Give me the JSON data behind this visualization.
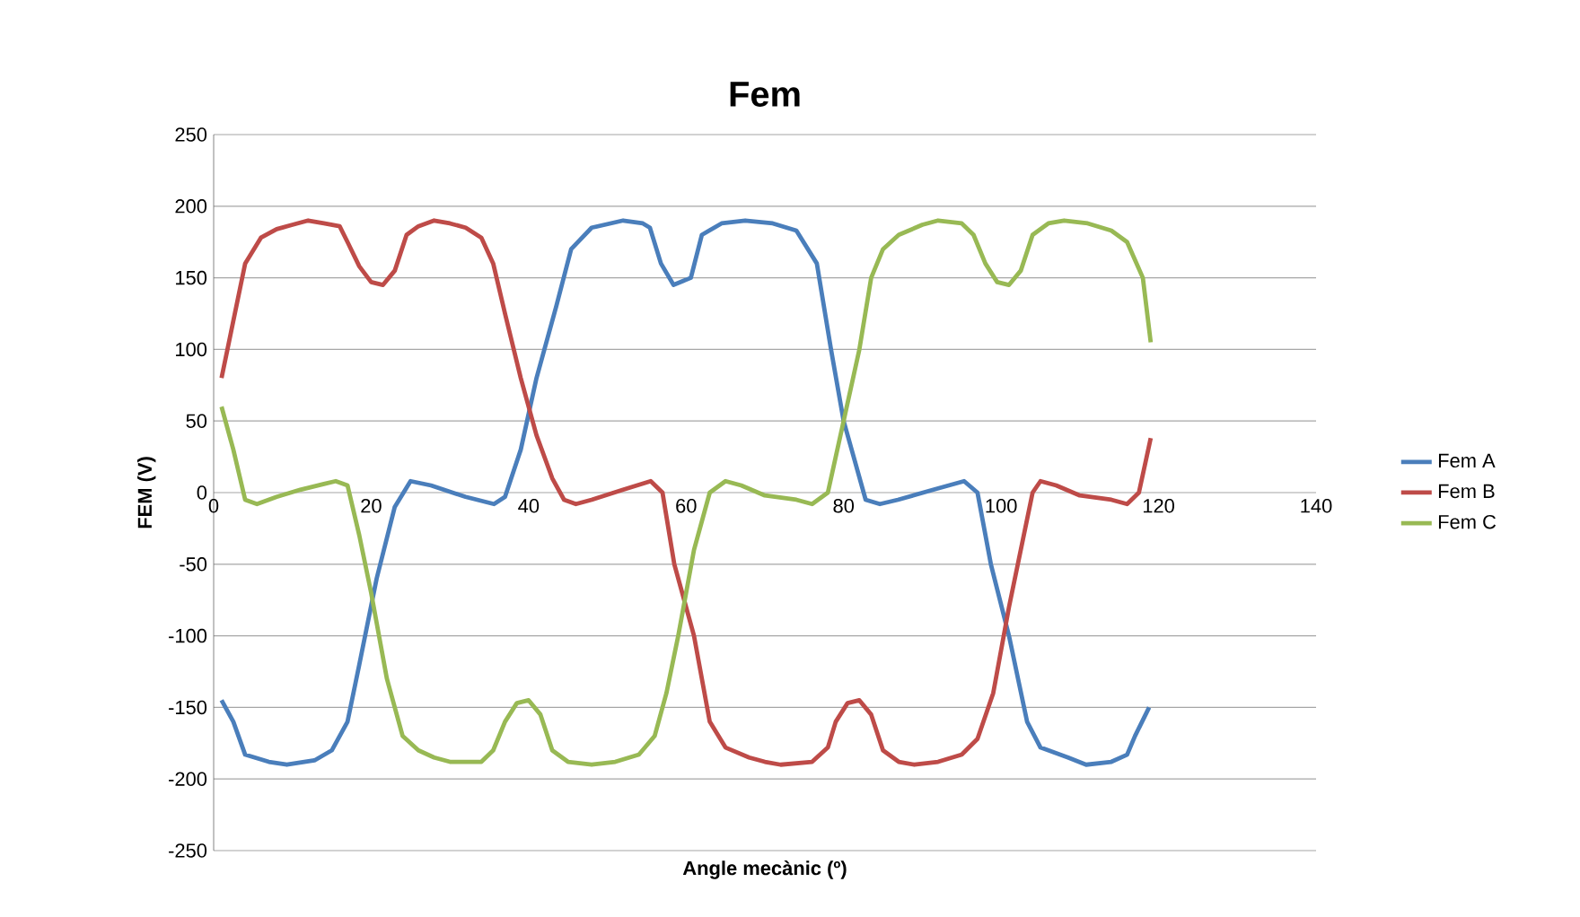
{
  "chart_data": {
    "type": "line",
    "title": "Fem",
    "xlabel": "Angle mecànic (º)",
    "ylabel": "FEM (V)",
    "xlim": [
      0,
      140
    ],
    "xticks": [
      0,
      20,
      40,
      60,
      80,
      100,
      120,
      140
    ],
    "ylim": [
      -250,
      250
    ],
    "yticks": [
      -250,
      -200,
      -150,
      -100,
      -50,
      0,
      50,
      100,
      150,
      200,
      250
    ],
    "grid": "y",
    "legend": "right",
    "marker": "none",
    "line_style": "solid",
    "series": [
      {
        "name": "Fem A",
        "color": "#4a7ebb",
        "x": [
          1,
          2.5,
          4,
          7,
          9.3,
          12.8,
          15,
          17,
          18.5,
          20.7,
          23,
          25,
          27.6,
          32,
          35.6,
          37,
          39,
          41,
          43.5,
          45.4,
          48,
          52,
          54.5,
          55.4,
          56.8,
          58.4,
          60.6,
          62,
          64.5,
          67.5,
          71,
          74,
          76.6,
          78.4,
          80,
          82.8,
          84.6,
          86.9,
          91.4,
          95.3,
          97,
          98.7,
          101,
          103.3,
          105,
          108.5,
          110.8,
          114,
          116,
          117,
          118.8
        ],
        "values": [
          -145,
          -160,
          -183,
          -188,
          -190,
          -187,
          -180,
          -160,
          -120,
          -60,
          -10,
          8,
          5,
          -3,
          -8,
          -3,
          30,
          80,
          130,
          170,
          185,
          190,
          188,
          185,
          160,
          145,
          150,
          180,
          188,
          190,
          188,
          183,
          160,
          100,
          50,
          -5,
          -8,
          -5,
          2,
          8,
          0,
          -50,
          -100,
          -160,
          -178,
          -185,
          -190,
          -188,
          -183,
          -170,
          -150
        ]
      },
      {
        "name": "Fem B",
        "color": "#be4b48",
        "x": [
          1,
          2.5,
          4,
          6,
          8,
          10,
          12,
          14,
          16,
          17,
          18.5,
          20,
          21.5,
          23,
          24.5,
          26,
          28,
          30,
          32,
          34,
          35.5,
          37,
          39,
          41,
          43,
          44.5,
          46,
          48,
          52,
          55.5,
          57,
          58.5,
          61,
          63,
          65,
          68,
          70,
          72,
          76,
          78,
          79,
          80.5,
          82,
          83.5,
          85,
          87,
          89,
          92,
          95,
          97,
          99,
          101,
          102.5,
          104,
          105,
          107,
          110,
          114,
          116,
          117.5,
          119
        ],
        "values": [
          80,
          120,
          160,
          178,
          184,
          187,
          190,
          188,
          186,
          175,
          158,
          147,
          145,
          155,
          180,
          186,
          190,
          188,
          185,
          178,
          160,
          125,
          80,
          40,
          10,
          -5,
          -8,
          -5,
          2,
          8,
          0,
          -50,
          -100,
          -160,
          -178,
          -185,
          -188,
          -190,
          -188,
          -178,
          -160,
          -147,
          -145,
          -155,
          -180,
          -188,
          -190,
          -188,
          -183,
          -172,
          -140,
          -80,
          -40,
          0,
          8,
          5,
          -2,
          -5,
          -8,
          0,
          38
        ]
      },
      {
        "name": "Fem C",
        "color": "#98b954",
        "x": [
          1,
          2.5,
          4,
          5.5,
          8,
          11,
          14,
          15.5,
          17,
          18.5,
          20,
          22,
          24,
          26,
          28,
          30,
          34,
          35.5,
          37,
          38.5,
          40,
          41.5,
          43,
          45,
          48,
          51,
          54,
          56,
          57.5,
          59,
          61,
          63,
          65,
          67,
          70,
          74,
          76,
          78,
          80,
          82,
          83.5,
          85,
          87,
          90,
          92,
          95,
          96.5,
          98,
          99.5,
          101,
          102.5,
          104,
          106,
          108,
          111,
          114,
          116,
          118,
          119
        ],
        "values": [
          60,
          30,
          -5,
          -8,
          -3,
          2,
          6,
          8,
          5,
          -30,
          -70,
          -130,
          -170,
          -180,
          -185,
          -188,
          -188,
          -180,
          -160,
          -147,
          -145,
          -155,
          -180,
          -188,
          -190,
          -188,
          -183,
          -170,
          -140,
          -100,
          -40,
          0,
          8,
          5,
          -2,
          -5,
          -8,
          0,
          50,
          100,
          150,
          170,
          180,
          187,
          190,
          188,
          180,
          160,
          147,
          145,
          155,
          180,
          188,
          190,
          188,
          183,
          175,
          150,
          105
        ]
      }
    ]
  }
}
